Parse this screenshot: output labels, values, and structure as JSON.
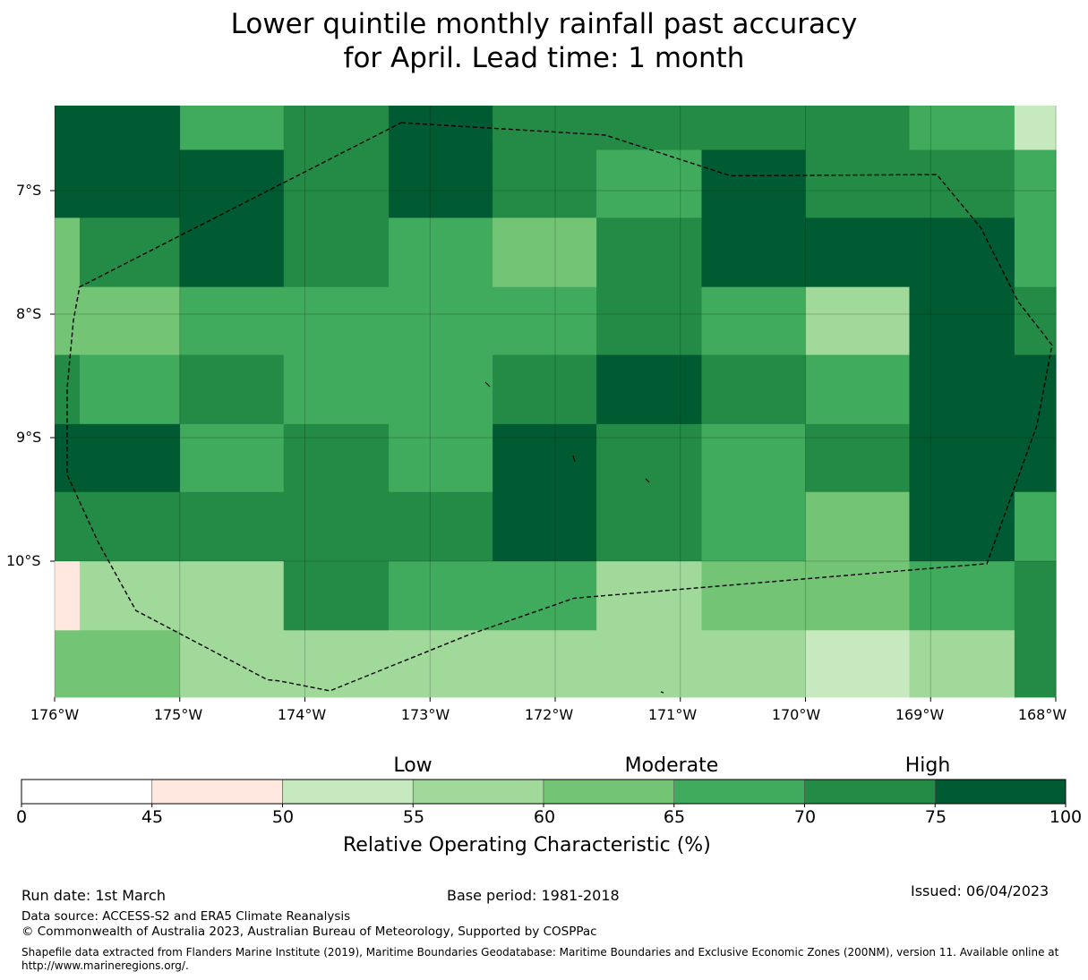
{
  "title": {
    "line1": "Lower quintile monthly rainfall past accuracy",
    "line2": "for April. Lead time: 1 month"
  },
  "map": {
    "lat_labels": [
      "7°S",
      "8°S",
      "9°S",
      "10°S"
    ],
    "lon_labels": [
      "176°W",
      "175°W",
      "174°W",
      "173°W",
      "172°W",
      "171°W",
      "170°W",
      "169°W",
      "168°W"
    ],
    "lon_edges": [
      -176,
      -175.8,
      -175,
      -174.17,
      -173.33,
      -172.5,
      -171.67,
      -170.83,
      -170,
      -169.17,
      -168.33,
      -168
    ],
    "lat_edges": [
      -6.3,
      -6.67,
      -7.22,
      -7.78,
      -8.33,
      -8.89,
      -9.44,
      -10,
      -10.56,
      -11.1
    ],
    "roc_grid": [
      [
        80,
        80,
        67,
        72,
        80,
        72,
        72,
        72,
        72,
        67,
        52
      ],
      [
        80,
        80,
        80,
        72,
        80,
        72,
        67,
        80,
        72,
        72,
        67
      ],
      [
        62,
        72,
        80,
        72,
        67,
        62,
        72,
        80,
        80,
        80,
        67
      ],
      [
        62,
        62,
        67,
        67,
        67,
        67,
        72,
        67,
        57,
        80,
        72
      ],
      [
        72,
        67,
        72,
        67,
        67,
        72,
        80,
        72,
        67,
        80,
        80
      ],
      [
        80,
        80,
        67,
        72,
        67,
        80,
        72,
        67,
        72,
        80,
        80
      ],
      [
        72,
        72,
        72,
        72,
        72,
        80,
        72,
        67,
        62,
        80,
        67
      ],
      [
        47,
        57,
        57,
        72,
        67,
        67,
        57,
        62,
        62,
        67,
        72
      ],
      [
        62,
        62,
        57,
        57,
        57,
        57,
        57,
        57,
        52,
        57,
        72
      ]
    ],
    "boundary": [
      [
        -173.23,
        -6.45
      ],
      [
        -171.6,
        -6.55
      ],
      [
        -170.6,
        -6.88
      ],
      [
        -168.95,
        -6.87
      ],
      [
        -168.6,
        -7.3
      ],
      [
        -168.3,
        -7.9
      ],
      [
        -168.03,
        -8.25
      ],
      [
        -168.15,
        -8.9
      ],
      [
        -168.55,
        -10.02
      ],
      [
        -171.85,
        -10.3
      ],
      [
        -172.7,
        -10.6
      ],
      [
        -173.8,
        -11.05
      ],
      [
        -174.2,
        -10.97
      ],
      [
        -174.3,
        -10.96
      ],
      [
        -175.35,
        -10.4
      ],
      [
        -175.65,
        -9.85
      ],
      [
        -175.9,
        -9.3
      ],
      [
        -175.9,
        -8.6
      ],
      [
        -175.85,
        -8.05
      ],
      [
        -175.8,
        -7.78
      ],
      [
        -173.23,
        -6.45
      ]
    ]
  },
  "colorbar": {
    "category_labels": [
      "Low",
      "Moderate",
      "High"
    ],
    "ticks": [
      "0",
      "45",
      "50",
      "55",
      "60",
      "65",
      "70",
      "75",
      "100"
    ],
    "colors": [
      "#ffffff",
      "#fee8df",
      "#c7e9c0",
      "#a1d99b",
      "#74c476",
      "#41ab5d",
      "#238b45",
      "#005a32"
    ],
    "title": "Relative Operating Characteristic (%)"
  },
  "footer": {
    "run_date": "Run date: 1st March",
    "base_period": "Base period: 1981-2018",
    "issued": "Issued: 06/04/2023",
    "data_source": "Data source: ACCESS-S2 and ERA5 Climate Reanalysis",
    "copyright": "© Commonwealth of Australia 2023, Australian Bureau of Meteorology, Supported by COSPPac",
    "shapefile": "Shapefile data extracted from Flanders Marine Institute (2019), Maritime Boundaries Geodatabase: Maritime Boundaries and Exclusive Economic Zones (200NM), version 11. Available online at http://www.marineregions.org/."
  },
  "chart_data": {
    "type": "heatmap",
    "title": "Lower quintile monthly rainfall past accuracy for April. Lead time: 1 month",
    "x_label": "Longitude",
    "y_label": "Latitude",
    "x_range": [
      -176,
      -168
    ],
    "y_range": [
      -11.1,
      -6.3
    ],
    "value_label": "Relative Operating Characteristic (%)",
    "bins": [
      0,
      45,
      50,
      55,
      60,
      65,
      70,
      75,
      100
    ]
  }
}
